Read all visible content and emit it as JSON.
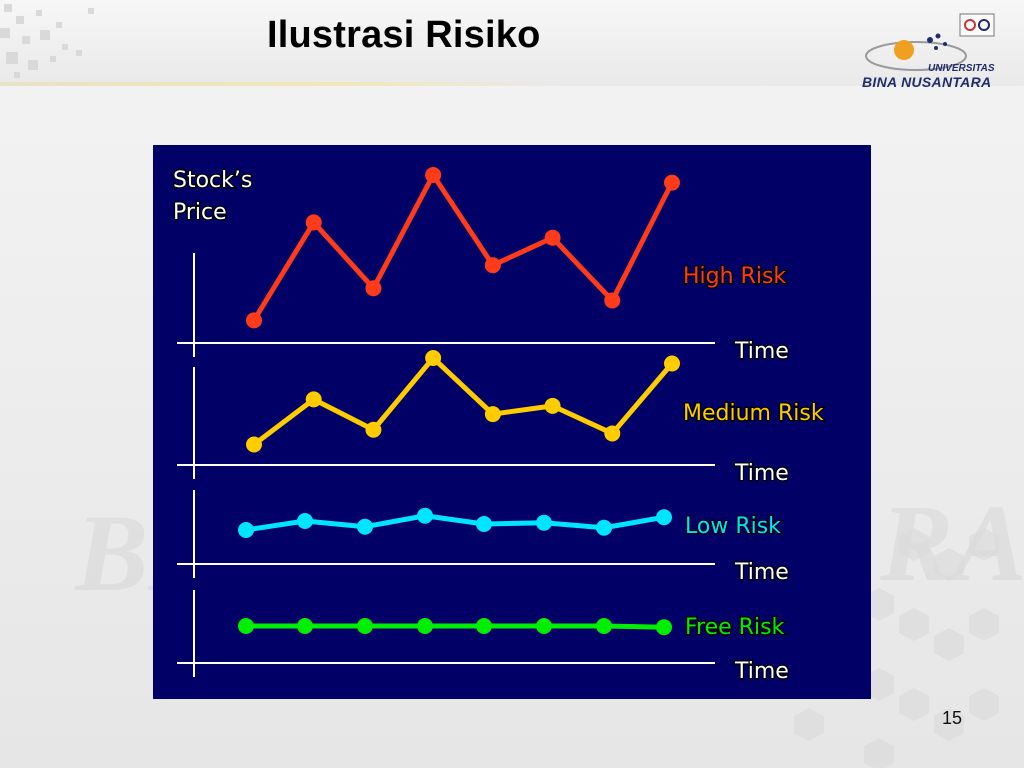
{
  "slide": {
    "title": "Ilustrasi Risiko",
    "page_number": "15",
    "logo": {
      "line1": "UNIVERSITAS",
      "line2": "BINA NUSANTARA",
      "colors": {
        "navy": "#1f2d6b",
        "orange": "#f0a020"
      }
    }
  },
  "chart_data": {
    "type": "line",
    "title": "",
    "ylabel": [
      "Stock’s",
      "Price"
    ],
    "xlabel": "Time",
    "grid": false,
    "background": "#000066",
    "panels": [
      {
        "name": "High Risk",
        "color": "#ff3b1a",
        "label_color": "#ff3b1a",
        "y": [
          0.05,
          0.69,
          0.26,
          1.0,
          0.41,
          0.59,
          0.18,
          0.95
        ],
        "x": [
          0.5,
          1,
          1.5,
          2,
          2.5,
          3,
          3.5,
          4
        ]
      },
      {
        "name": "Medium Risk",
        "color": "#ffcc00",
        "label_color": "#ffcc00",
        "y": [
          0.06,
          0.55,
          0.22,
          1.0,
          0.39,
          0.48,
          0.18,
          0.94
        ],
        "x": [
          0.5,
          1,
          1.5,
          2,
          2.5,
          3,
          3.5,
          4
        ]
      },
      {
        "name": "Low Risk",
        "color": "#00e5ff",
        "label_color": "#00e5ff",
        "y": [
          0.2,
          0.56,
          0.33,
          0.77,
          0.44,
          0.49,
          0.29,
          0.71
        ],
        "x": [
          0.5,
          1,
          1.5,
          2,
          2.5,
          3,
          3.5,
          4
        ]
      },
      {
        "name": "Free Risk",
        "color": "#00ee00",
        "label_color": "#00ee00",
        "y": [
          0.5,
          0.5,
          0.5,
          0.5,
          0.5,
          0.5,
          0.5,
          0.45
        ],
        "x": [
          0.5,
          1,
          1.5,
          2,
          2.5,
          3,
          3.5,
          4
        ]
      }
    ]
  }
}
